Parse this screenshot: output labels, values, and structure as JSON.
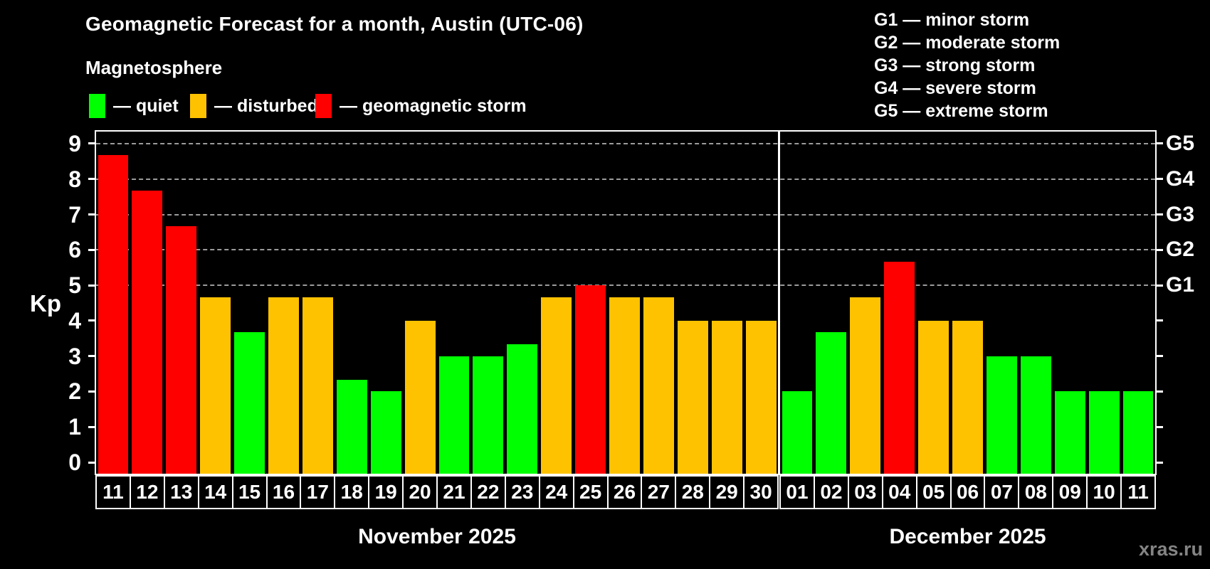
{
  "title": "Geomagnetic Forecast for a month, Austin (UTC-06)",
  "subtitle": "Magnetosphere",
  "legend": {
    "items": [
      {
        "status": "quiet",
        "label": "— quiet",
        "color": "#00ff00"
      },
      {
        "status": "disturbed",
        "label": "— disturbed",
        "color": "#ffc200"
      },
      {
        "status": "storm",
        "label": "— geomagnetic storm",
        "color": "#ff0000"
      }
    ]
  },
  "g_legend": [
    "G1 — minor storm",
    "G2 — moderate storm",
    "G3 — strong storm",
    "G4 — severe storm",
    "G5 — extreme storm"
  ],
  "watermark": "xras.ru",
  "chart_data": {
    "type": "bar",
    "title": "Geomagnetic Forecast for a month, Austin (UTC-06)",
    "ylabel": "Kp",
    "ylim": [
      0,
      9
    ],
    "yticks": [
      0,
      1,
      2,
      3,
      4,
      5,
      6,
      7,
      8,
      9
    ],
    "grid": "horizontal dashed gray lines at Kp 5,6,7,8,9 only",
    "legend_position": "top",
    "right_axis": [
      {
        "kp": 5,
        "label": "G1"
      },
      {
        "kp": 6,
        "label": "G2"
      },
      {
        "kp": 7,
        "label": "G3"
      },
      {
        "kp": 8,
        "label": "G4"
      },
      {
        "kp": 9,
        "label": "G5"
      }
    ],
    "status_colors": {
      "quiet": "#00ff00",
      "disturbed": "#ffc200",
      "storm": "#ff0000"
    },
    "months": [
      {
        "label": "November 2025",
        "days": [
          {
            "day": "11",
            "kp": 8.67,
            "status": "storm"
          },
          {
            "day": "12",
            "kp": 7.67,
            "status": "storm"
          },
          {
            "day": "13",
            "kp": 6.67,
            "status": "storm"
          },
          {
            "day": "14",
            "kp": 4.67,
            "status": "disturbed"
          },
          {
            "day": "15",
            "kp": 3.67,
            "status": "quiet"
          },
          {
            "day": "16",
            "kp": 4.67,
            "status": "disturbed"
          },
          {
            "day": "17",
            "kp": 4.67,
            "status": "disturbed"
          },
          {
            "day": "18",
            "kp": 2.33,
            "status": "quiet"
          },
          {
            "day": "19",
            "kp": 2.0,
            "status": "quiet"
          },
          {
            "day": "20",
            "kp": 4.0,
            "status": "disturbed"
          },
          {
            "day": "21",
            "kp": 3.0,
            "status": "quiet"
          },
          {
            "day": "22",
            "kp": 3.0,
            "status": "quiet"
          },
          {
            "day": "23",
            "kp": 3.33,
            "status": "quiet"
          },
          {
            "day": "24",
            "kp": 4.67,
            "status": "disturbed"
          },
          {
            "day": "25",
            "kp": 5.0,
            "status": "storm"
          },
          {
            "day": "26",
            "kp": 4.67,
            "status": "disturbed"
          },
          {
            "day": "27",
            "kp": 4.67,
            "status": "disturbed"
          },
          {
            "day": "28",
            "kp": 4.0,
            "status": "disturbed"
          },
          {
            "day": "29",
            "kp": 4.0,
            "status": "disturbed"
          },
          {
            "day": "30",
            "kp": 4.0,
            "status": "disturbed"
          }
        ]
      },
      {
        "label": "December 2025",
        "days": [
          {
            "day": "01",
            "kp": 2.0,
            "status": "quiet"
          },
          {
            "day": "02",
            "kp": 3.67,
            "status": "quiet"
          },
          {
            "day": "03",
            "kp": 4.67,
            "status": "disturbed"
          },
          {
            "day": "04",
            "kp": 5.67,
            "status": "storm"
          },
          {
            "day": "05",
            "kp": 4.0,
            "status": "disturbed"
          },
          {
            "day": "06",
            "kp": 4.0,
            "status": "disturbed"
          },
          {
            "day": "07",
            "kp": 3.0,
            "status": "quiet"
          },
          {
            "day": "08",
            "kp": 3.0,
            "status": "quiet"
          },
          {
            "day": "09",
            "kp": 2.0,
            "status": "quiet"
          },
          {
            "day": "10",
            "kp": 2.0,
            "status": "quiet"
          },
          {
            "day": "11",
            "kp": 2.0,
            "status": "quiet"
          }
        ]
      }
    ]
  }
}
